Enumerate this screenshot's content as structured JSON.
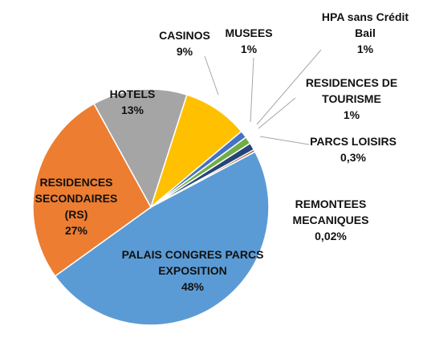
{
  "chart_data": {
    "type": "pie",
    "categories": [
      "PALAIS CONGRES PARCS EXPOSITION",
      "RESIDENCES SECONDAIRES (RS)",
      "HOTELS",
      "CASINOS",
      "MUSEES",
      "HPA sans Crédit Bail",
      "RESIDENCES DE TOURISME",
      "PARCS LOISIRS",
      "REMONTEES MECANIQUES"
    ],
    "values": [
      48,
      27,
      13,
      9,
      1,
      1,
      1,
      0.3,
      0.02
    ],
    "value_labels": [
      "48%",
      "27%",
      "13%",
      "9%",
      "1%",
      "1%",
      "1%",
      "0,3%",
      "0,02%"
    ],
    "colors": [
      "#5b9bd5",
      "#ed7d31",
      "#a5a5a5",
      "#ffc000",
      "#4472c4",
      "#70ad47",
      "#264478",
      "#9e480e",
      "#636363"
    ]
  }
}
